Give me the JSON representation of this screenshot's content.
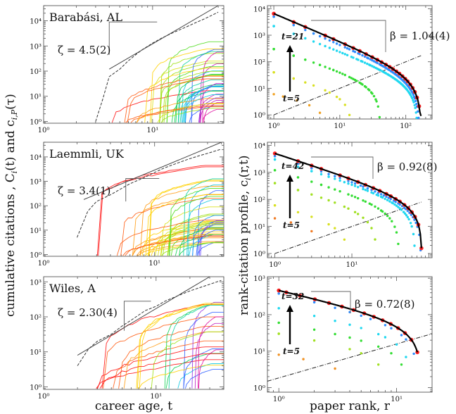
{
  "figure": {
    "left_ylabel_main": "cumulative citations , C",
    "left_ylabel_sub1": "i",
    "left_ylabel_mid1": "(t) and c",
    "left_ylabel_sub2": "i,P",
    "left_ylabel_end": "(τ)",
    "right_ylabel_main": "rank-citation profile, c",
    "right_ylabel_sub": "i",
    "right_ylabel_end": "(r,t)",
    "left_xlabel": "career age, t",
    "right_xlabel": "paper rank, r"
  },
  "chart_data": [
    {
      "type": "line",
      "title": "Barabási, AL",
      "annotation": "ζ = 4.5(2)",
      "xscale": "log",
      "yscale": "log",
      "xlim": [
        1,
        45
      ],
      "ylim": [
        0.85,
        40000
      ],
      "xticks": [
        {
          "v": 1,
          "label": "10⁰"
        },
        {
          "v": 10,
          "label": "10¹"
        }
      ],
      "yticks": [
        {
          "v": 1,
          "label": "10⁰"
        },
        {
          "v": 10,
          "label": "10¹"
        },
        {
          "v": 100,
          "label": "10²"
        },
        {
          "v": 1000,
          "label": "10³"
        },
        {
          "v": 10000,
          "label": "10⁴"
        }
      ],
      "cumulative": {
        "x": [
          3,
          3.5,
          4,
          5,
          6,
          7,
          8,
          10,
          12,
          15,
          20,
          25,
          30,
          40
        ],
        "y": [
          1,
          8,
          60,
          120,
          260,
          450,
          700,
          1300,
          2000,
          3200,
          5500,
          8500,
          12000,
          22000
        ]
      },
      "slope_guide": {
        "x": [
          4,
          40
        ],
        "y": [
          120,
          40000
        ]
      },
      "guide_bracket": {
        "x0": 4,
        "x1": 11,
        "ytop": 9000,
        "ybot": 450
      },
      "paper_curves": {
        "count": 42,
        "start_range": [
          3,
          30
        ],
        "end_range": [
          3,
          1500
        ]
      }
    },
    {
      "type": "scatter",
      "title": "",
      "annotation": "β = 1.04(4)",
      "xscale": "log",
      "yscale": "log",
      "xlim": [
        0.8,
        250
      ],
      "ylim": [
        0.7,
        13000
      ],
      "xticks": [
        {
          "v": 1,
          "label": "10⁰"
        },
        {
          "v": 10,
          "label": "10¹"
        },
        {
          "v": 100,
          "label": "10²"
        }
      ],
      "yticks": [
        {
          "v": 1,
          "label": "10⁰"
        },
        {
          "v": 10,
          "label": "10¹"
        },
        {
          "v": 100,
          "label": "10²"
        },
        {
          "v": 1000,
          "label": "10³"
        },
        {
          "v": 10000,
          "label": "10⁴"
        }
      ],
      "t_high": "t=21",
      "t_low": "t=5",
      "fit": {
        "A": 6500,
        "beta": 1.04,
        "N": 170
      },
      "h_line": {
        "x": [
          1,
          170
        ],
        "y": [
          1,
          170
        ]
      },
      "profiles": [
        {
          "color": "#ff2020",
          "A": 6500,
          "beta": 1.04,
          "N": 170,
          "n": 26
        },
        {
          "color": "#2d8cff",
          "A": 5000,
          "beta": 1.04,
          "N": 160,
          "n": 70
        },
        {
          "color": "#20d8f0",
          "A": 2200,
          "beta": 0.95,
          "N": 150,
          "n": 70
        },
        {
          "color": "#33dd33",
          "A": 300,
          "beta": 0.8,
          "N": 40,
          "n": 38
        },
        {
          "color": "#d8e020",
          "A": 40,
          "beta": 0.7,
          "N": 14,
          "n": 12
        },
        {
          "color": "#f0a020",
          "A": 6,
          "beta": 0.5,
          "N": 5,
          "n": 5
        }
      ]
    },
    {
      "type": "line",
      "title": "Laemmli, UK",
      "annotation": "ζ = 3.4(1)",
      "xscale": "log",
      "yscale": "log",
      "xlim": [
        1,
        42
      ],
      "ylim": [
        0.85,
        40000
      ],
      "xticks": [
        {
          "v": 1,
          "label": "10⁰"
        },
        {
          "v": 10,
          "label": "10¹"
        }
      ],
      "yticks": [
        {
          "v": 1,
          "label": "10⁰"
        },
        {
          "v": 10,
          "label": "10¹"
        },
        {
          "v": 100,
          "label": "10²"
        },
        {
          "v": 1000,
          "label": "10³"
        },
        {
          "v": 10000,
          "label": "10⁴"
        }
      ],
      "cumulative": {
        "x": [
          2,
          2.5,
          3,
          4,
          5,
          6,
          8,
          10,
          12,
          15,
          20,
          25,
          30,
          40
        ],
        "y": [
          5,
          60,
          150,
          280,
          500,
          800,
          1400,
          2300,
          3400,
          5000,
          8000,
          11000,
          14000,
          21000
        ]
      },
      "slope_guide": {
        "x": [
          2.3,
          40
        ],
        "y": [
          180,
          40000
        ]
      },
      "guide_bracket": {
        "x0": 5.5,
        "x1": 11,
        "ytop": 1300,
        "ybot": 150
      },
      "paper_curves": {
        "count": 48,
        "start_range": [
          2,
          32
        ],
        "end_range": [
          3,
          6000
        ]
      }
    },
    {
      "type": "scatter",
      "title": "",
      "annotation": "β = 0.92(8)",
      "xscale": "log",
      "yscale": "log",
      "xlim": [
        0.8,
        110
      ],
      "ylim": [
        0.7,
        13000
      ],
      "xticks": [
        {
          "v": 1,
          "label": "10⁰"
        },
        {
          "v": 10,
          "label": "10¹"
        }
      ],
      "yticks": [
        {
          "v": 1,
          "label": "10⁰"
        },
        {
          "v": 10,
          "label": "10¹"
        },
        {
          "v": 100,
          "label": "10²"
        },
        {
          "v": 1000,
          "label": "10³"
        },
        {
          "v": 10000,
          "label": "10⁴"
        }
      ],
      "t_high": "t=42",
      "t_low": "t=5",
      "fit": {
        "A": 5000,
        "beta": 0.92,
        "N": 80
      },
      "h_line": {
        "x": [
          1,
          80
        ],
        "y": [
          1,
          80
        ]
      },
      "profiles": [
        {
          "color": "#ff2020",
          "A": 5000,
          "beta": 0.92,
          "N": 80,
          "n": 20
        },
        {
          "color": "#2d8cff",
          "A": 4000,
          "beta": 0.92,
          "N": 78,
          "n": 40
        },
        {
          "color": "#20d8f0",
          "A": 3000,
          "beta": 0.88,
          "N": 65,
          "n": 45
        },
        {
          "color": "#33dd33",
          "A": 1200,
          "beta": 0.85,
          "N": 40,
          "n": 30
        },
        {
          "color": "#a0e020",
          "A": 400,
          "beta": 0.8,
          "N": 20,
          "n": 16
        },
        {
          "color": "#d8e020",
          "A": 60,
          "beta": 0.7,
          "N": 8,
          "n": 7
        },
        {
          "color": "#f07820",
          "A": 20,
          "beta": 0.5,
          "N": 3,
          "n": 3
        }
      ]
    },
    {
      "type": "line",
      "title": "Wiles, A",
      "annotation": "ζ = 2.30(4)",
      "xscale": "log",
      "yscale": "log",
      "xlim": [
        1,
        40
      ],
      "ylim": [
        0.85,
        1400
      ],
      "xticks": [
        {
          "v": 1,
          "label": "10⁰"
        },
        {
          "v": 10,
          "label": "10¹"
        }
      ],
      "yticks": [
        {
          "v": 1,
          "label": "10⁰"
        },
        {
          "v": 10,
          "label": "10¹"
        },
        {
          "v": 100,
          "label": "10²"
        },
        {
          "v": 1000,
          "label": "10³"
        }
      ],
      "cumulative": {
        "x": [
          2,
          2.5,
          3,
          4,
          5,
          6,
          8,
          10,
          12,
          15,
          20,
          25,
          30,
          38
        ],
        "y": [
          4,
          12,
          20,
          32,
          55,
          80,
          150,
          200,
          280,
          380,
          550,
          700,
          850,
          1100
        ]
      },
      "slope_guide": {
        "x": [
          2,
          30
        ],
        "y": [
          8,
          1400
        ]
      },
      "guide_bracket": {
        "x0": 5.2,
        "x1": 9,
        "ytop": 280,
        "ybot": 40
      },
      "paper_curves": {
        "count": 24,
        "start_range": [
          2,
          24
        ],
        "end_range": [
          3,
          400
        ]
      }
    },
    {
      "type": "scatter",
      "title": "",
      "annotation": "β = 0.72(8)",
      "xscale": "log",
      "yscale": "log",
      "xlim": [
        0.8,
        20
      ],
      "ylim": [
        0.75,
        1100
      ],
      "xticks": [
        {
          "v": 1,
          "label": "10⁰"
        },
        {
          "v": 10,
          "label": "10¹"
        }
      ],
      "yticks": [
        {
          "v": 1,
          "label": "10⁰"
        },
        {
          "v": 10,
          "label": "10¹"
        },
        {
          "v": 100,
          "label": "10²"
        },
        {
          "v": 1000,
          "label": "10³"
        }
      ],
      "t_high": "t=32",
      "t_low": "t=5",
      "fit": {
        "A": 460,
        "beta": 0.72,
        "N": 15
      },
      "h_line": {
        "x": [
          0.8,
          20
        ],
        "y": [
          1.5,
          30
        ]
      },
      "profiles": [
        {
          "color": "#ff2020",
          "A": 460,
          "beta": 0.72,
          "N": 15,
          "n": 15
        },
        {
          "color": "#2d8cff",
          "A": 380,
          "beta": 0.72,
          "N": 14,
          "n": 13
        },
        {
          "color": "#20d8f0",
          "A": 150,
          "beta": 0.62,
          "N": 12,
          "n": 10
        },
        {
          "color": "#33dd33",
          "A": 60,
          "beta": 0.55,
          "N": 11,
          "n": 9
        },
        {
          "color": "#a0e020",
          "A": 30,
          "beta": 0.5,
          "N": 7,
          "n": 6
        },
        {
          "color": "#f09020",
          "A": 8,
          "beta": 0.4,
          "N": 3,
          "n": 3
        }
      ]
    }
  ]
}
